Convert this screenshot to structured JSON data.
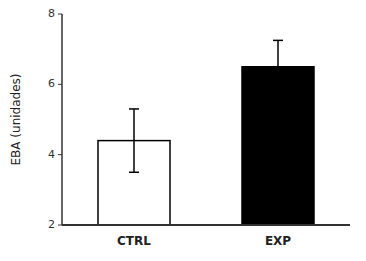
{
  "chart_data": {
    "type": "bar",
    "categories": [
      "CTRL",
      "EXP"
    ],
    "values": [
      4.4,
      6.5
    ],
    "errors": [
      0.9,
      0.75
    ],
    "colors": [
      "#ffffff",
      "#000000"
    ],
    "ylabel": "EBA (unidades)",
    "ylim": [
      2,
      8
    ],
    "yticks": [
      2,
      4,
      6,
      8
    ],
    "grid": false
  }
}
